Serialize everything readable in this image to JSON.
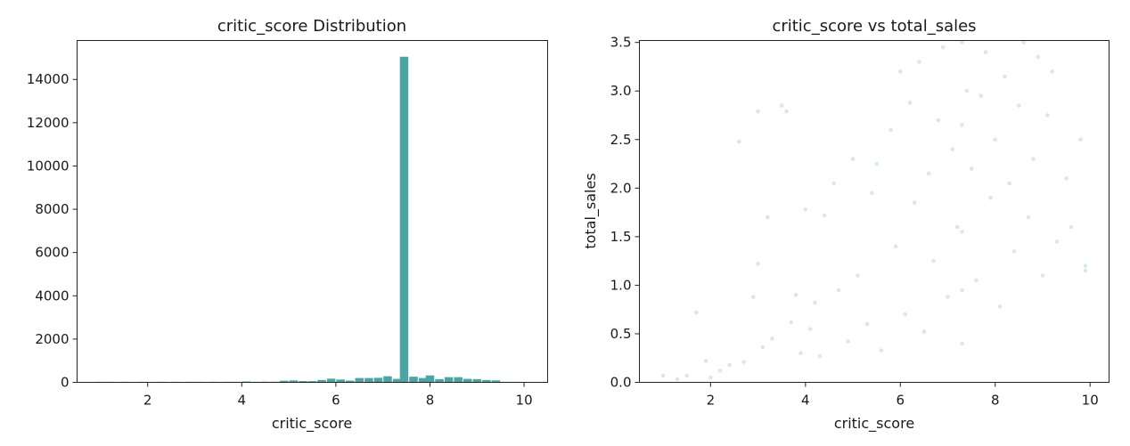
{
  "chart_data": [
    {
      "type": "bar",
      "title": "critic_score Distribution",
      "xlabel": "critic_score",
      "ylabel": "",
      "xlim": [
        0.5,
        10.5
      ],
      "ylim": [
        0,
        15800
      ],
      "xticks": [
        2,
        4,
        6,
        8,
        10
      ],
      "xtick_labels": [
        "2",
        "4",
        "6",
        "8",
        "10"
      ],
      "yticks": [
        0,
        2000,
        4000,
        6000,
        8000,
        10000,
        12000,
        14000
      ],
      "ytick_labels": [
        "0",
        "2000",
        "4000",
        "6000",
        "8000",
        "10000",
        "12000",
        "14000"
      ],
      "bar_color": "#4aa5a3",
      "bin_width": 0.18,
      "bins": [
        {
          "x": 1.0,
          "count": 2
        },
        {
          "x": 1.2,
          "count": 2
        },
        {
          "x": 1.5,
          "count": 3
        },
        {
          "x": 1.9,
          "count": 3
        },
        {
          "x": 2.3,
          "count": 5
        },
        {
          "x": 2.6,
          "count": 4
        },
        {
          "x": 2.9,
          "count": 6
        },
        {
          "x": 3.1,
          "count": 8
        },
        {
          "x": 3.4,
          "count": 10
        },
        {
          "x": 3.7,
          "count": 12
        },
        {
          "x": 3.9,
          "count": 14
        },
        {
          "x": 4.1,
          "count": 40
        },
        {
          "x": 4.3,
          "count": 25
        },
        {
          "x": 4.5,
          "count": 30
        },
        {
          "x": 4.7,
          "count": 30
        },
        {
          "x": 4.9,
          "count": 75
        },
        {
          "x": 5.1,
          "count": 90
        },
        {
          "x": 5.3,
          "count": 60
        },
        {
          "x": 5.5,
          "count": 55
        },
        {
          "x": 5.7,
          "count": 110
        },
        {
          "x": 5.9,
          "count": 170
        },
        {
          "x": 6.1,
          "count": 130
        },
        {
          "x": 6.3,
          "count": 80
        },
        {
          "x": 6.5,
          "count": 200
        },
        {
          "x": 6.7,
          "count": 200
        },
        {
          "x": 6.9,
          "count": 210
        },
        {
          "x": 7.1,
          "count": 280
        },
        {
          "x": 7.3,
          "count": 160
        },
        {
          "x": 7.45,
          "count": 15050
        },
        {
          "x": 7.65,
          "count": 260
        },
        {
          "x": 7.85,
          "count": 200
        },
        {
          "x": 8.0,
          "count": 320
        },
        {
          "x": 8.2,
          "count": 150
        },
        {
          "x": 8.4,
          "count": 240
        },
        {
          "x": 8.6,
          "count": 240
        },
        {
          "x": 8.8,
          "count": 160
        },
        {
          "x": 9.0,
          "count": 150
        },
        {
          "x": 9.2,
          "count": 110
        },
        {
          "x": 9.4,
          "count": 90
        },
        {
          "x": 9.6,
          "count": 20
        },
        {
          "x": 9.8,
          "count": 8
        }
      ]
    },
    {
      "type": "scatter",
      "title": "critic_score vs total_sales",
      "xlabel": "critic_score",
      "ylabel": "total_sales",
      "xlim": [
        0.5,
        10.4
      ],
      "ylim": [
        0.0,
        3.52
      ],
      "xticks": [
        2,
        4,
        6,
        8,
        10
      ],
      "xtick_labels": [
        "2",
        "4",
        "6",
        "8",
        "10"
      ],
      "yticks": [
        0.0,
        0.5,
        1.0,
        1.5,
        2.0,
        2.5,
        3.0,
        3.5
      ],
      "ytick_labels": [
        "0.0",
        "0.5",
        "1.0",
        "1.5",
        "2.0",
        "2.5",
        "3.0",
        "3.5"
      ],
      "point_color": "#1a8c8a",
      "point_alpha": 0.18,
      "points": [
        [
          1.0,
          0.07
        ],
        [
          1.3,
          0.03
        ],
        [
          1.5,
          0.07
        ],
        [
          1.7,
          0.72
        ],
        [
          1.9,
          0.22
        ],
        [
          2.0,
          0.05
        ],
        [
          2.2,
          0.12
        ],
        [
          2.4,
          0.18
        ],
        [
          2.6,
          2.48
        ],
        [
          2.7,
          0.21
        ],
        [
          2.9,
          0.88
        ],
        [
          3.0,
          2.79
        ],
        [
          3.0,
          1.22
        ],
        [
          3.1,
          0.36
        ],
        [
          3.2,
          1.7
        ],
        [
          3.3,
          0.45
        ],
        [
          3.5,
          2.85
        ],
        [
          3.6,
          2.79
        ],
        [
          3.7,
          0.62
        ],
        [
          3.8,
          0.9
        ],
        [
          3.9,
          0.3
        ],
        [
          4.0,
          1.78
        ],
        [
          4.1,
          0.55
        ],
        [
          4.2,
          0.82
        ],
        [
          4.3,
          0.27
        ],
        [
          4.4,
          1.72
        ],
        [
          4.6,
          2.05
        ],
        [
          4.7,
          0.95
        ],
        [
          4.9,
          0.42
        ],
        [
          5.0,
          2.3
        ],
        [
          5.1,
          1.1
        ],
        [
          5.3,
          0.6
        ],
        [
          5.4,
          1.95
        ],
        [
          5.5,
          2.25
        ],
        [
          5.6,
          0.33
        ],
        [
          5.8,
          2.6
        ],
        [
          5.9,
          1.4
        ],
        [
          6.0,
          3.2
        ],
        [
          6.1,
          0.7
        ],
        [
          6.2,
          2.88
        ],
        [
          6.3,
          1.85
        ],
        [
          6.4,
          3.3
        ],
        [
          6.5,
          0.52
        ],
        [
          6.6,
          2.15
        ],
        [
          6.7,
          1.25
        ],
        [
          6.8,
          2.7
        ],
        [
          6.9,
          3.45
        ],
        [
          7.0,
          0.88
        ],
        [
          7.1,
          2.4
        ],
        [
          7.2,
          1.6
        ],
        [
          7.4,
          3.0
        ],
        [
          7.5,
          2.2
        ],
        [
          7.6,
          1.05
        ],
        [
          7.7,
          2.95
        ],
        [
          7.8,
          3.4
        ],
        [
          7.9,
          1.9
        ],
        [
          8.0,
          2.5
        ],
        [
          8.1,
          0.78
        ],
        [
          8.2,
          3.15
        ],
        [
          8.3,
          2.05
        ],
        [
          8.4,
          1.35
        ],
        [
          8.5,
          2.85
        ],
        [
          8.6,
          3.5
        ],
        [
          8.7,
          1.7
        ],
        [
          8.8,
          2.3
        ],
        [
          8.9,
          3.35
        ],
        [
          9.0,
          1.1
        ],
        [
          9.1,
          2.75
        ],
        [
          9.2,
          3.2
        ],
        [
          9.3,
          1.45
        ],
        [
          9.5,
          2.1
        ],
        [
          9.6,
          1.6
        ],
        [
          9.8,
          2.5
        ],
        [
          9.9,
          1.15
        ],
        [
          9.9,
          1.2
        ],
        [
          7.3,
          3.5
        ],
        [
          7.3,
          2.65
        ],
        [
          7.3,
          1.55
        ],
        [
          7.3,
          0.95
        ],
        [
          7.3,
          0.4
        ]
      ]
    }
  ]
}
